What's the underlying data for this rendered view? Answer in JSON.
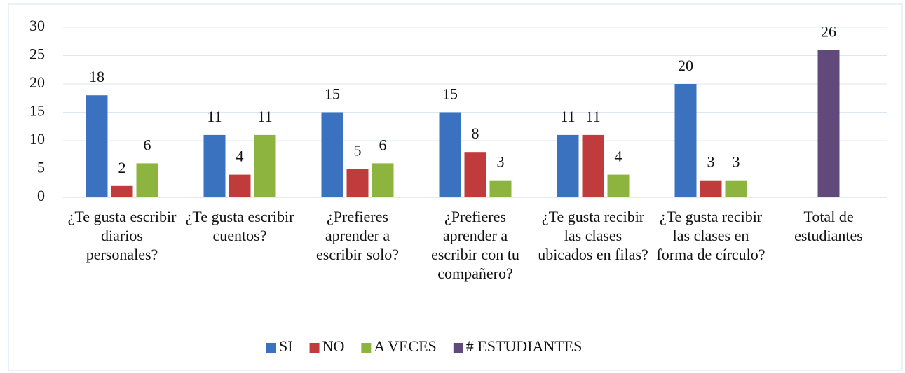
{
  "chart_data": {
    "type": "bar",
    "categories": [
      "¿Te gusta escribir diarios personales?",
      "¿Te gusta escribir cuentos?",
      "¿Prefieres aprender a escribir solo?",
      "¿Prefieres aprender a escribir con tu compañero?",
      "¿Te gusta recibir las clases ubicados en filas?",
      "¿Te gusta recibir las clases en forma de círculo?",
      "Total de estudiantes"
    ],
    "series": [
      {
        "name": "SI",
        "color": "#3b72bf",
        "values": [
          18,
          11,
          15,
          15,
          11,
          20,
          null
        ]
      },
      {
        "name": "NO",
        "color": "#c03b3b",
        "values": [
          2,
          4,
          5,
          8,
          11,
          3,
          null
        ]
      },
      {
        "name": "A VECES",
        "color": "#8cb43e",
        "values": [
          6,
          11,
          6,
          3,
          4,
          3,
          null
        ]
      },
      {
        "name": "# ESTUDIANTES",
        "color": "#62497c",
        "values": [
          null,
          null,
          null,
          null,
          null,
          null,
          26
        ]
      }
    ],
    "ylim": [
      0,
      30
    ],
    "yticks": [
      0,
      5,
      10,
      15,
      20,
      25,
      30
    ],
    "grid": true,
    "legend": "bottom"
  }
}
